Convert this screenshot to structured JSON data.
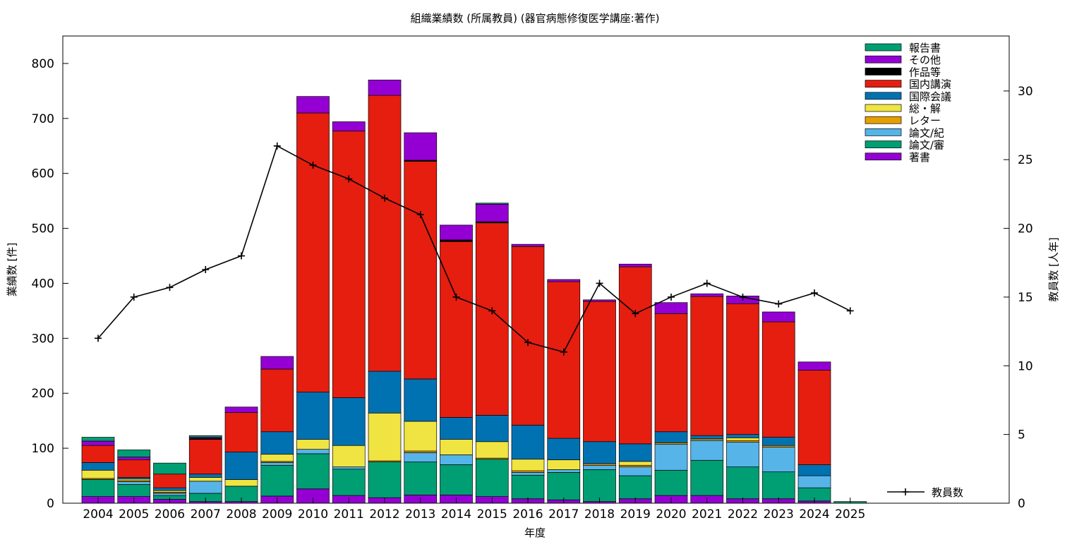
{
  "chart_data": {
    "type": "bar",
    "title": "組織業績数 (所属教員) (器官病態修復医学講座:著作)",
    "xlabel": "年度",
    "ylabel": "業績数 [件]",
    "y2label": "教員数 [人年]",
    "ylim": [
      0,
      850
    ],
    "y2lim": [
      0,
      34
    ],
    "yticks": [
      0,
      100,
      200,
      300,
      400,
      500,
      600,
      700,
      800
    ],
    "y2ticks": [
      0,
      5,
      10,
      15,
      20,
      25,
      30
    ],
    "grid": false,
    "legend_position": "top-right",
    "stacked": true,
    "categories": [
      "2004",
      "2005",
      "2006",
      "2007",
      "2008",
      "2009",
      "2010",
      "2011",
      "2012",
      "2013",
      "2014",
      "2015",
      "2016",
      "2017",
      "2018",
      "2019",
      "2020",
      "2021",
      "2022",
      "2023",
      "2024",
      "2025"
    ],
    "series": [
      {
        "name": "著書",
        "color": "#9400d3",
        "values": [
          12,
          12,
          7,
          3,
          3,
          13,
          26,
          14,
          10,
          15,
          15,
          12,
          8,
          6,
          3,
          8,
          14,
          14,
          8,
          8,
          4,
          0
        ]
      },
      {
        "name": "論文/審",
        "color": "#009e73",
        "values": [
          31,
          22,
          7,
          15,
          28,
          56,
          64,
          48,
          65,
          60,
          55,
          68,
          43,
          50,
          58,
          42,
          46,
          64,
          58,
          49,
          24,
          3
        ]
      },
      {
        "name": "論文/紀",
        "color": "#56b4e9",
        "values": [
          0,
          5,
          4,
          22,
          0,
          5,
          8,
          4,
          0,
          17,
          18,
          0,
          5,
          5,
          8,
          16,
          47,
          36,
          45,
          45,
          22,
          0
        ]
      },
      {
        "name": "レター",
        "color": "#e69f00",
        "values": [
          2,
          2,
          2,
          0,
          0,
          2,
          0,
          0,
          2,
          3,
          0,
          2,
          3,
          0,
          3,
          3,
          3,
          3,
          3,
          3,
          0,
          0
        ]
      },
      {
        "name": "総・解",
        "color": "#f0e442",
        "values": [
          15,
          3,
          3,
          7,
          12,
          13,
          18,
          39,
          87,
          54,
          28,
          30,
          21,
          18,
          0,
          7,
          0,
          0,
          5,
          0,
          0,
          0
        ]
      },
      {
        "name": "国際会議",
        "color": "#0072b2",
        "values": [
          14,
          3,
          5,
          6,
          50,
          41,
          86,
          87,
          76,
          77,
          40,
          48,
          62,
          39,
          40,
          32,
          20,
          6,
          6,
          15,
          20,
          0
        ]
      },
      {
        "name": "国内講演",
        "color": "#e51e10",
        "values": [
          31,
          32,
          25,
          63,
          72,
          114,
          508,
          485,
          502,
          396,
          320,
          350,
          325,
          285,
          255,
          322,
          215,
          253,
          238,
          210,
          172,
          0
        ]
      },
      {
        "name": "作品等",
        "color": "#000000",
        "values": [
          0,
          0,
          0,
          2,
          0,
          0,
          0,
          0,
          0,
          2,
          3,
          2,
          0,
          0,
          0,
          0,
          0,
          0,
          0,
          0,
          0,
          0
        ]
      },
      {
        "name": "その他",
        "color": "#9400d3",
        "values": [
          8,
          5,
          0,
          2,
          10,
          23,
          30,
          17,
          28,
          50,
          27,
          32,
          4,
          4,
          3,
          5,
          20,
          5,
          14,
          18,
          15,
          0
        ]
      },
      {
        "name": "報告書",
        "color": "#009e73",
        "values": [
          7,
          13,
          20,
          3,
          0,
          0,
          0,
          0,
          0,
          0,
          0,
          2,
          0,
          0,
          0,
          0,
          0,
          0,
          0,
          0,
          0,
          0
        ]
      }
    ],
    "legend_order": [
      "報告書",
      "その他",
      "作品等",
      "国内講演",
      "国際会議",
      "総・解",
      "レター",
      "論文/紀",
      "論文/審",
      "著書"
    ],
    "line_series": {
      "name": "教員数",
      "color": "#000000",
      "axis": "y2",
      "categories": [
        "2004",
        "2005",
        "2006",
        "2007",
        "2008",
        "2009",
        "2010",
        "2011",
        "2012",
        "2013",
        "2014",
        "2015",
        "2016",
        "2017",
        "2018",
        "2019",
        "2020",
        "2021",
        "2022",
        "2023",
        "2024",
        "2025"
      ],
      "values": [
        12,
        15,
        15.7,
        17,
        18,
        26,
        24.6,
        23.6,
        22.2,
        21,
        15,
        14,
        11.7,
        11,
        16,
        13.8,
        15,
        16,
        15,
        14.5,
        15.3,
        14
      ]
    }
  }
}
